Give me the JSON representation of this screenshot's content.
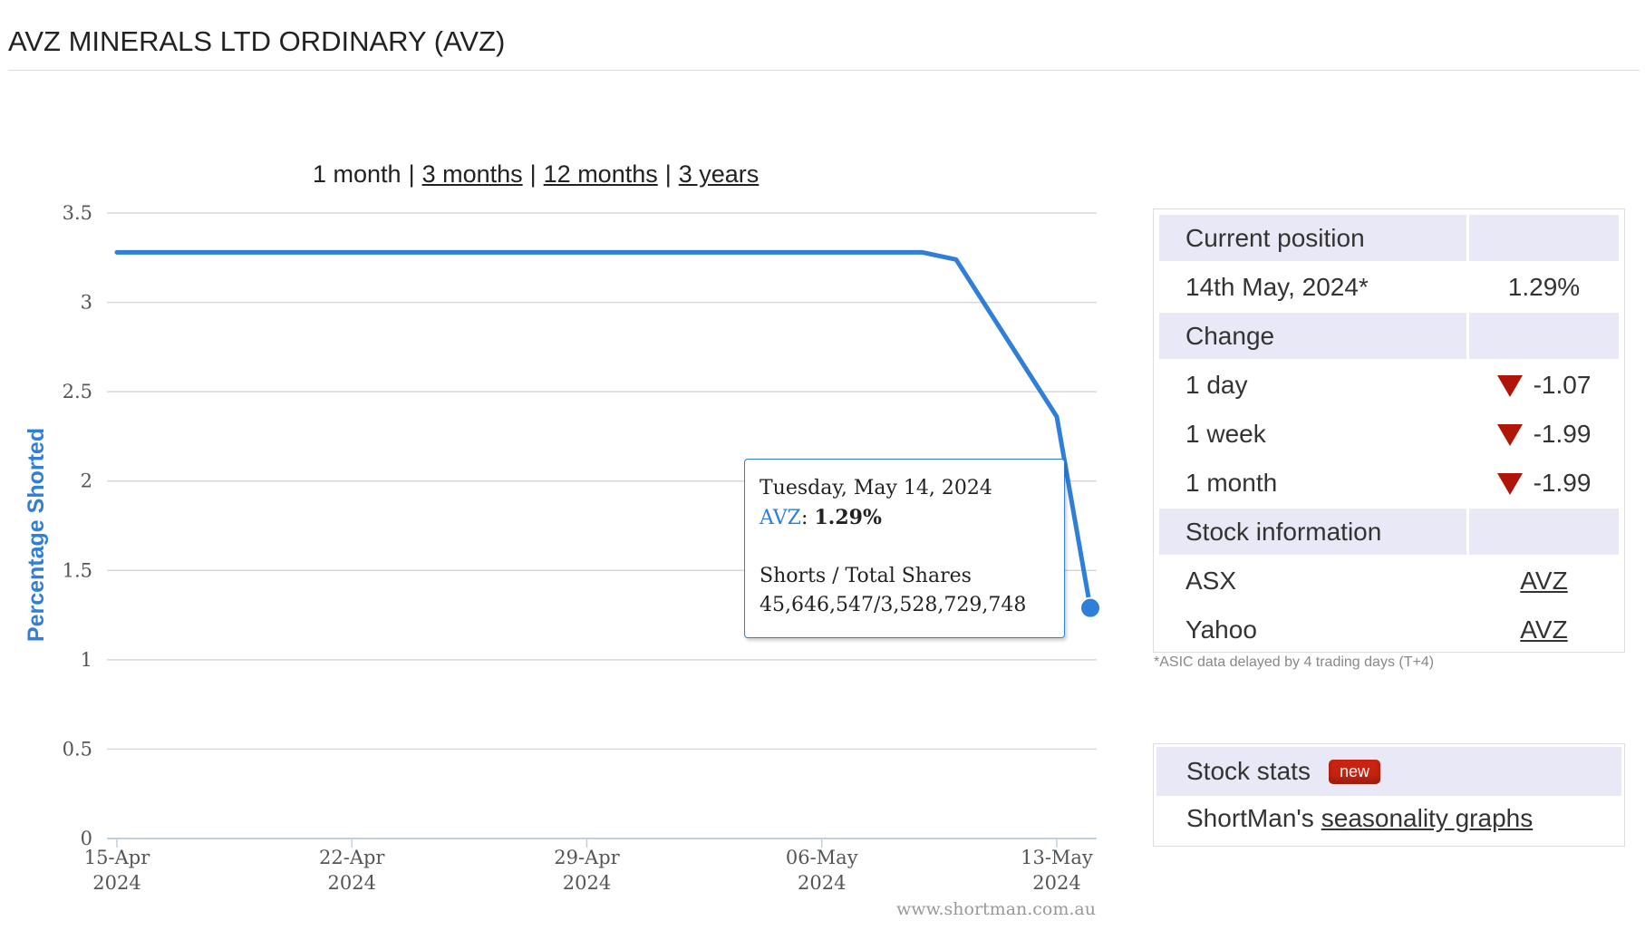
{
  "page": {
    "title": "AVZ MINERALS LTD ORDINARY (AVZ)"
  },
  "range_selector": {
    "current": "1 month",
    "links": [
      "3 months",
      "12 months",
      "3 years"
    ],
    "separator": "|"
  },
  "chart_data": {
    "type": "line",
    "ylabel": "Percentage Shorted",
    "ylim": [
      0,
      3.5
    ],
    "yticks": [
      "0",
      "0.5",
      "1",
      "1.5",
      "2",
      "2.5",
      "3",
      "3.5"
    ],
    "xticks": [
      {
        "date": "2024-04-15",
        "label1": "15-Apr",
        "label2": "2024"
      },
      {
        "date": "2024-04-22",
        "label1": "22-Apr",
        "label2": "2024"
      },
      {
        "date": "2024-04-29",
        "label1": "29-Apr",
        "label2": "2024"
      },
      {
        "date": "2024-05-06",
        "label1": "06-May",
        "label2": "2024"
      },
      {
        "date": "2024-05-13",
        "label1": "13-May",
        "label2": "2024"
      }
    ],
    "series": [
      {
        "name": "AVZ",
        "color": "#2f7ed8",
        "points": [
          {
            "x": "2024-04-15",
            "y": 3.28
          },
          {
            "x": "2024-05-09",
            "y": 3.28
          },
          {
            "x": "2024-05-10",
            "y": 3.24
          },
          {
            "x": "2024-05-13",
            "y": 2.36
          },
          {
            "x": "2024-05-14",
            "y": 1.29
          }
        ]
      }
    ],
    "credit": "www.shortman.com.au",
    "tooltip": {
      "date": "Tuesday, May 14, 2024",
      "series": "AVZ",
      "value": "1.29%",
      "line3": "Shorts / Total Shares",
      "line4": "45,646,547/3,528,729,748"
    }
  },
  "position_panel": {
    "current_position_label": "Current position",
    "date": "14th May, 2024*",
    "value": "1.29%",
    "change_label": "Change",
    "changes": [
      {
        "period": "1 day",
        "value": "-1.07"
      },
      {
        "period": "1 week",
        "value": "-1.99"
      },
      {
        "period": "1 month",
        "value": "-1.99"
      }
    ],
    "stock_info_label": "Stock information",
    "links": [
      {
        "source": "ASX",
        "code": "AVZ"
      },
      {
        "source": "Yahoo",
        "code": "AVZ"
      }
    ],
    "note": "*ASIC data delayed by 4 trading days (T+4)"
  },
  "stats_panel": {
    "title": "Stock stats",
    "badge": "new",
    "text": "ShortMan's",
    "link": "seasonality graphs"
  }
}
